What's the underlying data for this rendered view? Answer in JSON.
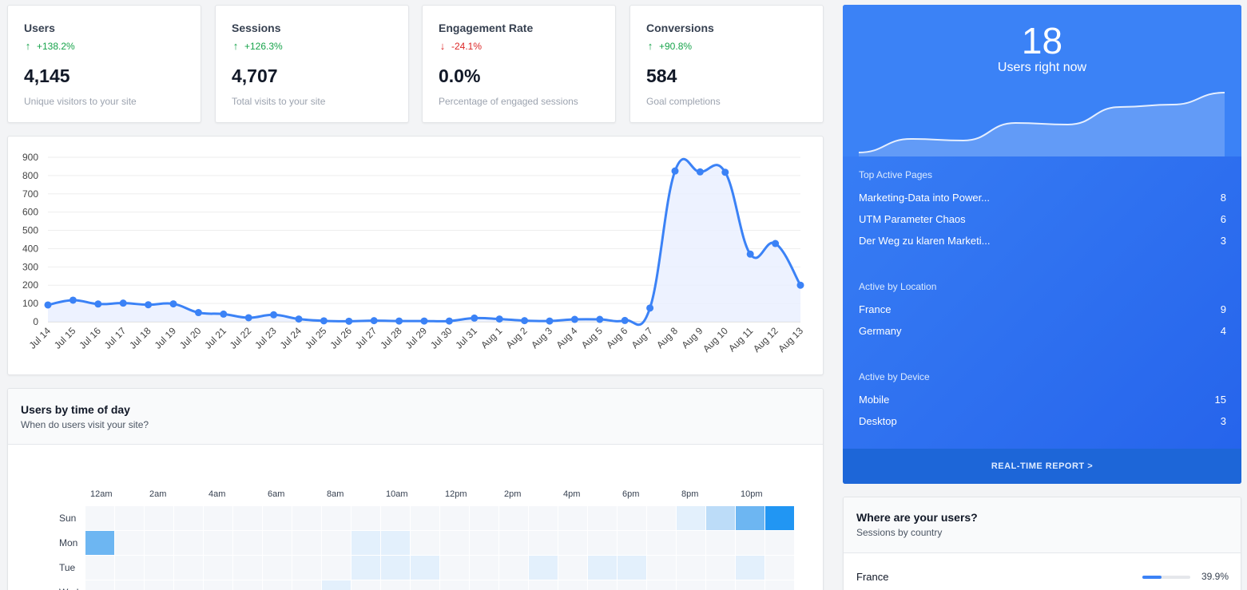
{
  "stats": [
    {
      "title": "Users",
      "change": "+138.2%",
      "direction": "up",
      "value": "4,145",
      "desc": "Unique visitors to your site"
    },
    {
      "title": "Sessions",
      "change": "+126.3%",
      "direction": "up",
      "value": "4,707",
      "desc": "Total visits to your site"
    },
    {
      "title": "Engagement Rate",
      "change": "-24.1%",
      "direction": "down",
      "value": "0.0%",
      "desc": "Percentage of engaged sessions"
    },
    {
      "title": "Conversions",
      "change": "+90.8%",
      "direction": "up",
      "value": "584",
      "desc": "Goal completions"
    }
  ],
  "chart_data": {
    "type": "area",
    "x": [
      "Jul 14",
      "Jul 15",
      "Jul 16",
      "Jul 17",
      "Jul 18",
      "Jul 19",
      "Jul 20",
      "Jul 21",
      "Jul 22",
      "Jul 23",
      "Jul 24",
      "Jul 25",
      "Jul 26",
      "Jul 27",
      "Jul 28",
      "Jul 29",
      "Jul 30",
      "Jul 31",
      "Aug 1",
      "Aug 2",
      "Aug 3",
      "Aug 4",
      "Aug 5",
      "Aug 6",
      "Aug 7",
      "Aug 8",
      "Aug 9",
      "Aug 10",
      "Aug 11",
      "Aug 12",
      "Aug 13"
    ],
    "values": [
      92,
      118,
      97,
      102,
      93,
      98,
      50,
      42,
      22,
      38,
      15,
      5,
      3,
      6,
      4,
      4,
      4,
      20,
      15,
      6,
      4,
      13,
      13,
      7,
      75,
      825,
      820,
      818,
      370,
      428,
      200
    ],
    "y_ticks": [
      0,
      100,
      200,
      300,
      400,
      500,
      600,
      700,
      800,
      900
    ],
    "ylim": [
      0,
      900
    ],
    "grid": true,
    "line_color": "#3b82f6",
    "fill_color": "#e8efff"
  },
  "heatmap": {
    "title": "Users by time of day",
    "subtitle": "When do users visit your site?",
    "hour_labels": [
      "12am",
      "2am",
      "4am",
      "6am",
      "8am",
      "10am",
      "12pm",
      "2pm",
      "4pm",
      "6pm",
      "8pm",
      "10pm"
    ],
    "days": [
      "Sun",
      "Mon",
      "Tue",
      "Wed"
    ],
    "levels": [
      [
        0,
        0,
        0,
        0,
        0,
        0,
        0,
        0,
        0,
        0,
        0,
        0,
        0,
        0,
        0,
        0,
        0,
        0,
        0,
        0,
        1,
        2,
        3,
        4
      ],
      [
        3,
        0,
        0,
        0,
        0,
        0,
        0,
        0,
        0,
        1,
        1,
        0,
        0,
        0,
        0,
        0,
        0,
        0,
        0,
        0,
        0,
        0,
        0,
        0
      ],
      [
        0,
        0,
        0,
        0,
        0,
        0,
        0,
        0,
        0,
        1,
        1,
        1,
        0,
        0,
        0,
        1,
        0,
        1,
        1,
        0,
        0,
        0,
        1,
        0
      ],
      [
        0,
        0,
        0,
        0,
        0,
        0,
        0,
        0,
        1,
        0,
        0,
        0,
        0,
        0,
        0,
        0,
        0,
        0,
        0,
        0,
        0,
        0,
        0,
        0
      ]
    ],
    "colors": [
      "#f5f7fa",
      "#e3f0fc",
      "#bcdcf8",
      "#6db6f2",
      "#2196f3"
    ]
  },
  "realtime": {
    "count": "18",
    "label": "Users right now",
    "spark": [
      5,
      22,
      20,
      42,
      40,
      62,
      65,
      80
    ],
    "sections": [
      {
        "title": "Top Active Pages",
        "rows": [
          {
            "name": "Marketing-Data into Power...",
            "value": "8"
          },
          {
            "name": "UTM Parameter Chaos",
            "value": "6"
          },
          {
            "name": "Der Weg zu klaren Marketi...",
            "value": "3"
          }
        ]
      },
      {
        "title": "Active by Location",
        "rows": [
          {
            "name": "France",
            "value": "9"
          },
          {
            "name": "Germany",
            "value": "4"
          }
        ]
      },
      {
        "title": "Active by Device",
        "rows": [
          {
            "name": "Mobile",
            "value": "15"
          },
          {
            "name": "Desktop",
            "value": "3"
          }
        ]
      }
    ],
    "footer": "REAL-TIME REPORT >"
  },
  "where": {
    "title": "Where are your users?",
    "subtitle": "Sessions by country",
    "countries": [
      {
        "name": "France",
        "pct_label": "39.9%",
        "pct": 39.9
      }
    ]
  }
}
